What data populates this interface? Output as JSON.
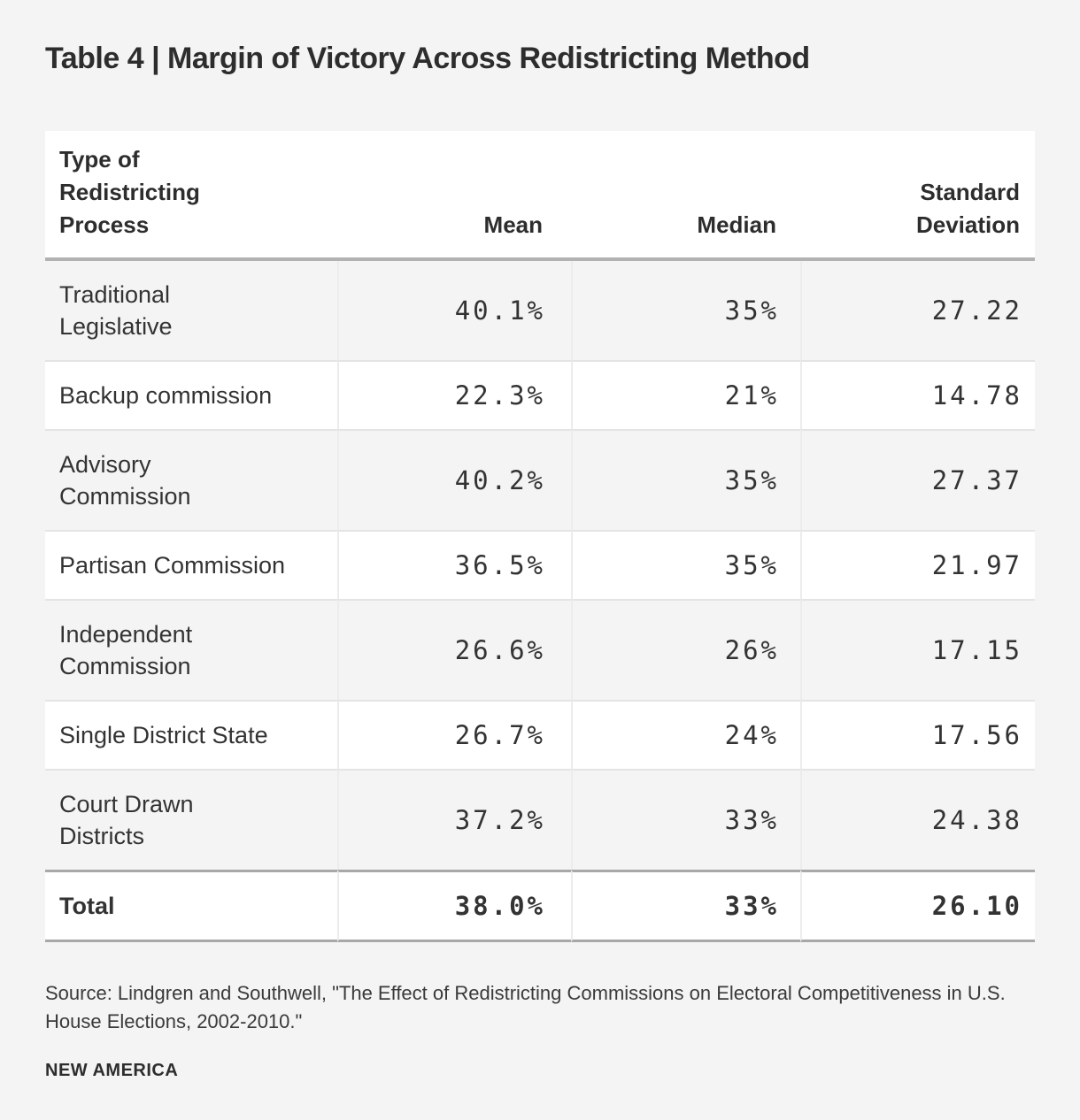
{
  "page": {
    "title": "Table 4 | Margin of Victory Across Redistricting Method"
  },
  "colors": {
    "page_background": "#f4f4f4",
    "table_background": "#ffffff",
    "shaded_row": "#f4f4f4",
    "header_rule": "#b2b2b2",
    "total_rule": "#a8a8a8",
    "row_divider": "#e4e4e4",
    "column_divider": "#ececec",
    "text": "#333333"
  },
  "table": {
    "header": {
      "col1_lines": [
        "Type of",
        "Redistricting",
        "Process"
      ],
      "mean": "Mean",
      "median": "Median",
      "std_lines": [
        "Standard",
        "Deviation"
      ]
    },
    "rows": [
      {
        "label": "Traditional Legislative",
        "label_lines": [
          "Traditional",
          "Legislative"
        ],
        "mean": "40.1%",
        "median": "35%",
        "std": "27.22"
      },
      {
        "label": "Backup commission",
        "label_lines": [
          "Backup commission"
        ],
        "mean": "22.3%",
        "median": "21%",
        "std": "14.78"
      },
      {
        "label": "Advisory Commission",
        "label_lines": [
          "Advisory",
          "Commission"
        ],
        "mean": "40.2%",
        "median": "35%",
        "std": "27.37"
      },
      {
        "label": "Partisan Commission",
        "label_lines": [
          "Partisan Commission"
        ],
        "mean": "36.5%",
        "median": "35%",
        "std": "21.97"
      },
      {
        "label": "Independent Commission",
        "label_lines": [
          "Independent",
          "Commission"
        ],
        "mean": "26.6%",
        "median": "26%",
        "std": "17.15"
      },
      {
        "label": "Single District State",
        "label_lines": [
          "Single District State"
        ],
        "mean": "26.7%",
        "median": "24%",
        "std": "17.56"
      },
      {
        "label": "Court Drawn Districts",
        "label_lines": [
          "Court Drawn",
          "Districts"
        ],
        "mean": "37.2%",
        "median": "33%",
        "std": "24.38"
      }
    ],
    "total": {
      "label": "Total",
      "mean": "38.0%",
      "median": "33%",
      "std": "26.10"
    }
  },
  "footer": {
    "source": "Source: Lindgren and Southwell, \"The Effect of Redistricting Commissions on Electoral Competitiveness in U.S. House Elections, 2002-2010.\"",
    "brand": "NEW AMERICA"
  },
  "chart_data": {
    "type": "table",
    "title": "Table 4 | Margin of Victory Across Redistricting Method",
    "columns": [
      "Type of Redistricting Process",
      "Mean",
      "Median",
      "Standard Deviation"
    ],
    "rows": [
      [
        "Traditional Legislative",
        "40.1%",
        "35%",
        27.22
      ],
      [
        "Backup commission",
        "22.3%",
        "21%",
        14.78
      ],
      [
        "Advisory Commission",
        "40.2%",
        "35%",
        27.37
      ],
      [
        "Partisan Commission",
        "36.5%",
        "35%",
        21.97
      ],
      [
        "Independent Commission",
        "26.6%",
        "26%",
        17.15
      ],
      [
        "Single District State",
        "26.7%",
        "24%",
        17.56
      ],
      [
        "Court Drawn Districts",
        "37.2%",
        "33%",
        24.38
      ],
      [
        "Total",
        "38.0%",
        "33%",
        26.1
      ]
    ],
    "source": "Source: Lindgren and Southwell, \"The Effect of Redistricting Commissions on Electoral Competitiveness in U.S. House Elections, 2002-2010.\"",
    "branding": "NEW AMERICA"
  }
}
